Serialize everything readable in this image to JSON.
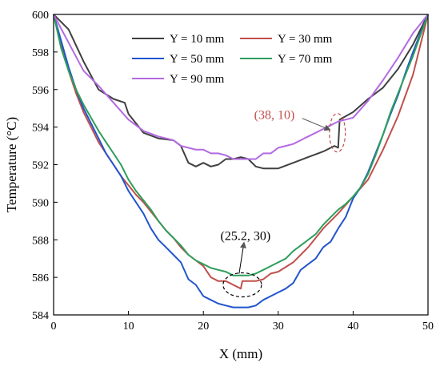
{
  "chart_data": {
    "type": "line",
    "xlabel": "X (mm)",
    "ylabel": "Temperature (°C)",
    "xlim": [
      0,
      50
    ],
    "ylim": [
      584,
      600
    ],
    "xticks": [
      0,
      10,
      20,
      30,
      40,
      50
    ],
    "yticks": [
      584,
      586,
      588,
      590,
      592,
      594,
      596,
      598,
      600
    ],
    "grid": false,
    "legend_position": "top",
    "series": [
      {
        "name": "Y = 10 mm",
        "color": "#404040",
        "x": [
          0,
          2,
          4,
          6,
          8,
          9.5,
          10,
          11,
          12,
          14,
          16,
          17,
          18,
          19,
          20,
          21,
          22,
          23,
          24,
          25,
          26,
          27,
          28,
          29,
          30,
          32,
          34,
          36,
          37.5,
          38,
          38.2,
          40,
          42,
          44,
          46,
          48,
          50
        ],
        "y": [
          600,
          599.2,
          597.5,
          596.0,
          595.5,
          595.3,
          594.7,
          594.2,
          593.7,
          593.4,
          593.3,
          593.0,
          592.1,
          591.9,
          592.1,
          591.9,
          592.0,
          592.3,
          592.3,
          592.4,
          592.3,
          591.9,
          591.8,
          591.8,
          591.8,
          592.1,
          592.4,
          592.7,
          593.0,
          592.9,
          594.4,
          594.8,
          595.5,
          596.1,
          597.1,
          598.4,
          600
        ]
      },
      {
        "name": "Y = 30 mm",
        "color": "#c0504d",
        "x": [
          0,
          1,
          2,
          3,
          4,
          5,
          6,
          7,
          8,
          9,
          10,
          11,
          12,
          13,
          14,
          15,
          16,
          17,
          18,
          19,
          20,
          21,
          22,
          23,
          24,
          25,
          25.2,
          26,
          27,
          28,
          29,
          30,
          32,
          34,
          36,
          38,
          40,
          42,
          44,
          46,
          48,
          50
        ],
        "y": [
          600,
          598.5,
          597.0,
          595.8,
          594.8,
          594.0,
          593.2,
          592.6,
          592.0,
          591.4,
          590.9,
          590.4,
          590.0,
          589.5,
          589.0,
          588.5,
          588.1,
          587.6,
          587.2,
          586.9,
          586.6,
          586.0,
          585.8,
          585.8,
          585.6,
          585.4,
          585.8,
          585.8,
          585.8,
          585.9,
          586.2,
          586.3,
          586.8,
          587.6,
          588.6,
          589.4,
          590.3,
          591.2,
          592.8,
          594.6,
          596.8,
          600
        ]
      },
      {
        "name": "Y = 50 mm",
        "color": "#2255cc",
        "x": [
          0,
          1,
          2,
          3,
          4,
          5,
          6,
          7,
          8,
          9,
          10,
          11,
          12,
          13,
          14,
          15,
          16,
          17,
          18,
          19,
          20,
          21,
          22,
          23,
          24,
          25,
          26,
          27,
          28,
          29,
          30,
          31,
          32,
          33,
          34,
          35,
          36,
          37,
          38,
          39,
          40,
          41,
          42,
          43,
          44,
          45,
          46,
          47,
          48,
          49,
          50
        ],
        "y": [
          600,
          598.6,
          597.2,
          596.0,
          595.0,
          594.2,
          593.4,
          592.6,
          592.0,
          591.4,
          590.6,
          590.0,
          589.4,
          588.6,
          588.0,
          587.6,
          587.2,
          586.8,
          585.9,
          585.6,
          585.0,
          584.8,
          584.6,
          584.5,
          584.4,
          584.4,
          584.4,
          584.5,
          584.8,
          585.0,
          585.2,
          585.4,
          585.7,
          586.4,
          586.7,
          587.0,
          587.6,
          587.9,
          588.6,
          589.2,
          590.2,
          590.8,
          591.6,
          592.6,
          593.6,
          594.7,
          595.7,
          596.9,
          598.0,
          599.0,
          600
        ]
      },
      {
        "name": "Y = 70 mm",
        "color": "#2e9e5b",
        "x": [
          0,
          1,
          2,
          3,
          4,
          5,
          6,
          7,
          8,
          9,
          10,
          11,
          12,
          13,
          14,
          15,
          16,
          17,
          18,
          19,
          20,
          21,
          22,
          23,
          24,
          25,
          26,
          27,
          28,
          29,
          30,
          31,
          32,
          33,
          34,
          35,
          36,
          37,
          38,
          39,
          40,
          41,
          42,
          43,
          44,
          45,
          46,
          47,
          48,
          49,
          50
        ],
        "y": [
          600,
          598.2,
          597.0,
          596.0,
          595.2,
          594.5,
          593.8,
          593.2,
          592.6,
          592.0,
          591.2,
          590.6,
          590.1,
          589.6,
          589.0,
          588.5,
          588.1,
          587.7,
          587.2,
          586.9,
          586.7,
          586.5,
          586.4,
          586.3,
          586.1,
          586.1,
          586.1,
          586.2,
          586.4,
          586.6,
          586.8,
          587.0,
          587.4,
          587.7,
          588.0,
          588.3,
          588.8,
          589.2,
          589.6,
          589.9,
          590.3,
          590.8,
          591.5,
          592.5,
          593.6,
          594.8,
          595.8,
          596.8,
          597.8,
          598.9,
          600
        ]
      },
      {
        "name": "Y = 90 mm",
        "color": "#b36ae2",
        "x": [
          0,
          2,
          4,
          6,
          8,
          10,
          12,
          14,
          16,
          17,
          18,
          19,
          20,
          21,
          22,
          23,
          24,
          25,
          26,
          27,
          28,
          29,
          30,
          31,
          32,
          33,
          34,
          35,
          36,
          37,
          38,
          39,
          40,
          42,
          44,
          46,
          48,
          50
        ],
        "y": [
          600,
          598.5,
          597.0,
          596.2,
          595.3,
          594.4,
          593.8,
          593.5,
          593.3,
          593.0,
          592.9,
          592.8,
          592.8,
          592.6,
          592.6,
          592.5,
          592.3,
          592.3,
          592.3,
          592.3,
          592.6,
          592.6,
          592.9,
          593.0,
          593.1,
          593.3,
          593.5,
          593.7,
          593.9,
          594.1,
          594.3,
          594.4,
          594.5,
          595.4,
          596.5,
          597.7,
          599.0,
          600
        ]
      }
    ],
    "annotations": [
      {
        "text": "(38, 10)",
        "color": "#c0504d",
        "point": [
          38,
          593.7
        ]
      },
      {
        "text": "(25.2, 30)",
        "color": "#000000",
        "point": [
          25.2,
          585.6
        ]
      }
    ]
  }
}
